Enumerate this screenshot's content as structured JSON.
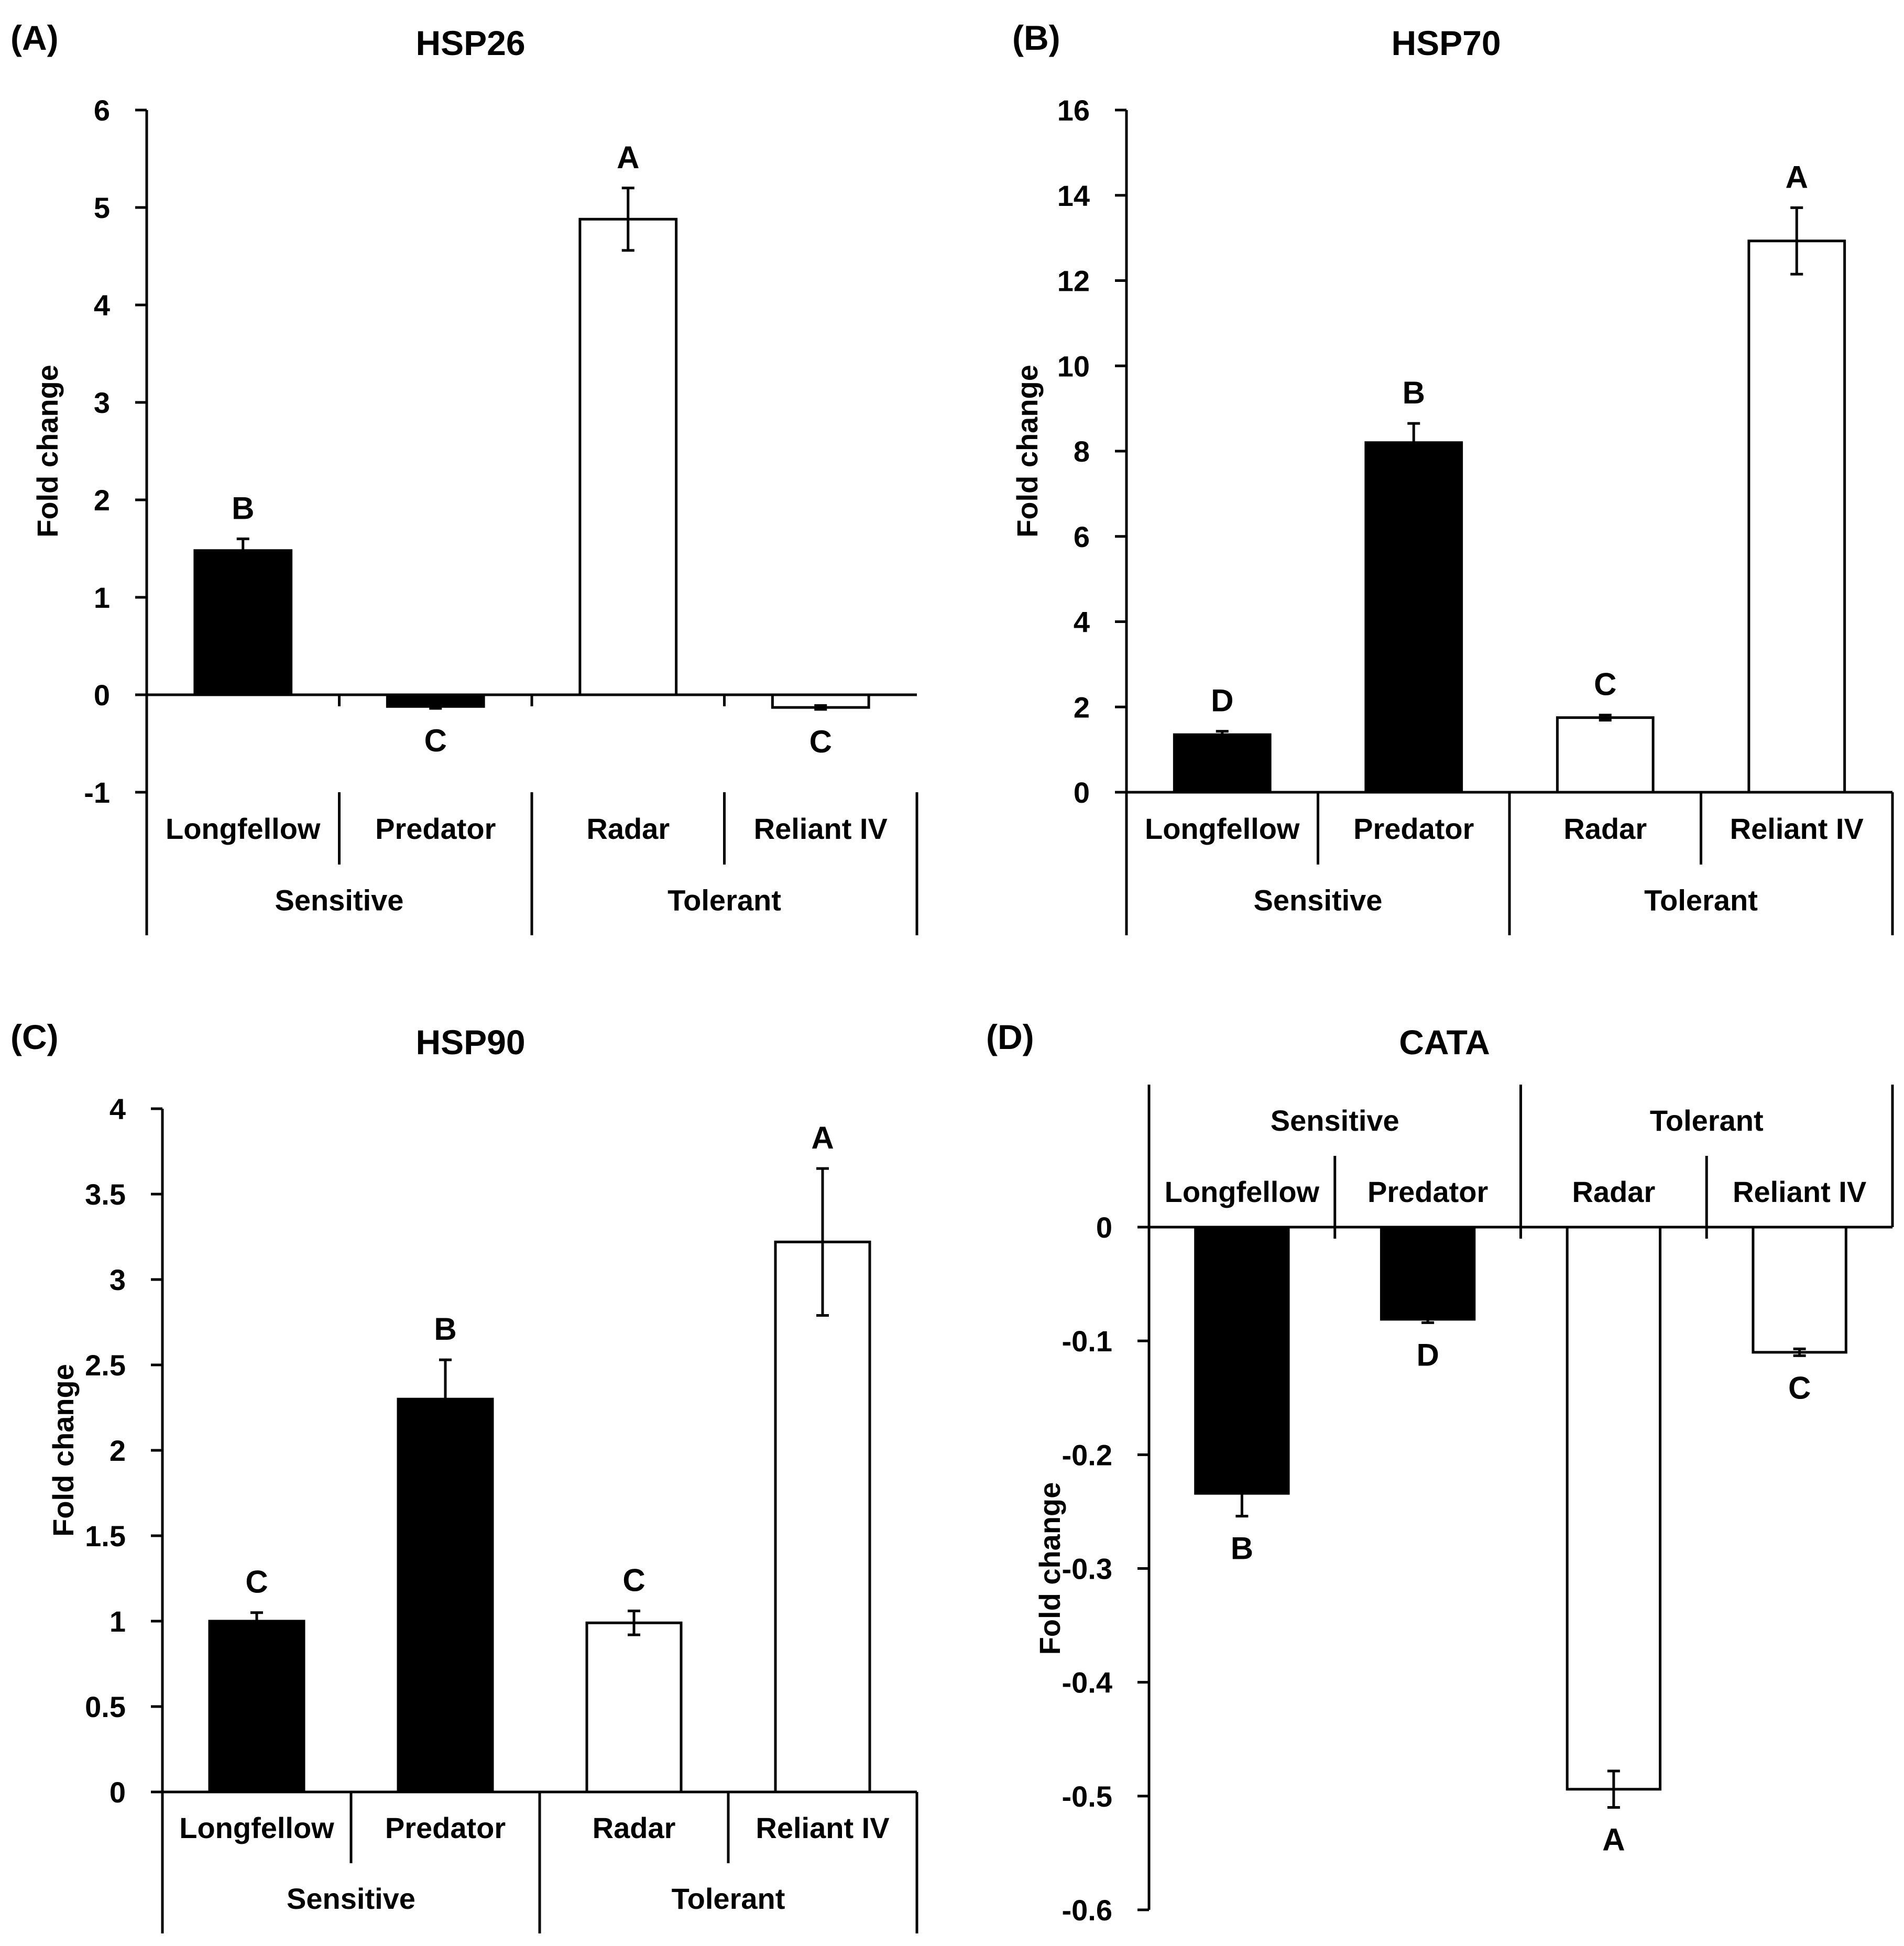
{
  "figure": {
    "panels": [
      {
        "letter": "(A)",
        "title": "HSP26"
      },
      {
        "letter": "(B)",
        "title": "HSP70"
      },
      {
        "letter": "(C)",
        "title": "HSP90"
      },
      {
        "letter": "(D)",
        "title": "CATA"
      }
    ]
  },
  "colors": {
    "sensitive_fill": "#000000",
    "tolerant_fill": "#ffffff",
    "axis": "#000000"
  },
  "chart_data": [
    {
      "type": "bar",
      "panel": "(A)",
      "title": "HSP26",
      "xlabel": "",
      "ylabel": "Fold change",
      "ylim": [
        -1,
        6
      ],
      "yticks": [
        -1,
        0,
        1,
        2,
        3,
        4,
        5,
        6
      ],
      "ytick_labels": [
        "-1",
        "0",
        "1",
        "2",
        "3",
        "4",
        "5",
        "6"
      ],
      "categories": [
        "Longfellow",
        "Predator",
        "Radar",
        "Reliant IV"
      ],
      "groups": [
        {
          "name": "Sensitive",
          "span": 2
        },
        {
          "name": "Tolerant",
          "span": 2
        }
      ],
      "values": [
        1.48,
        -0.12,
        4.88,
        -0.13
      ],
      "errors": [
        0.12,
        0.02,
        0.32,
        0.02
      ],
      "significance": [
        "B",
        "C",
        "A",
        "C"
      ],
      "bar_groups": [
        "Sensitive",
        "Sensitive",
        "Tolerant",
        "Tolerant"
      ]
    },
    {
      "type": "bar",
      "panel": "(B)",
      "title": "HSP70",
      "xlabel": "",
      "ylabel": "Fold change",
      "ylim": [
        0,
        16
      ],
      "yticks": [
        0,
        2,
        4,
        6,
        8,
        10,
        12,
        14,
        16
      ],
      "ytick_labels": [
        "0",
        "2",
        "4",
        "6",
        "8",
        "10",
        "12",
        "14",
        "16"
      ],
      "categories": [
        "Longfellow",
        "Predator",
        "Radar",
        "Reliant IV"
      ],
      "groups": [
        {
          "name": "Sensitive",
          "span": 2
        },
        {
          "name": "Tolerant",
          "span": 2
        }
      ],
      "values": [
        1.35,
        8.2,
        1.75,
        12.93
      ],
      "errors": [
        0.08,
        0.45,
        0.06,
        0.78
      ],
      "significance": [
        "D",
        "B",
        "C",
        "A"
      ],
      "bar_groups": [
        "Sensitive",
        "Sensitive",
        "Tolerant",
        "Tolerant"
      ]
    },
    {
      "type": "bar",
      "panel": "(C)",
      "title": "HSP90",
      "xlabel": "",
      "ylabel": "Fold change",
      "ylim": [
        0,
        4
      ],
      "yticks": [
        0,
        0.5,
        1,
        1.5,
        2,
        2.5,
        3,
        3.5,
        4
      ],
      "ytick_labels": [
        "0",
        "0.5",
        "1",
        "1.5",
        "2",
        "2.5",
        "3",
        "3.5",
        "4"
      ],
      "categories": [
        "Longfellow",
        "Predator",
        "Radar",
        "Reliant IV"
      ],
      "groups": [
        {
          "name": "Sensitive",
          "span": 2
        },
        {
          "name": "Tolerant",
          "span": 2
        }
      ],
      "values": [
        1.0,
        2.3,
        0.99,
        3.22
      ],
      "errors": [
        0.05,
        0.23,
        0.07,
        0.43
      ],
      "significance": [
        "C",
        "B",
        "C",
        "A"
      ],
      "bar_groups": [
        "Sensitive",
        "Sensitive",
        "Tolerant",
        "Tolerant"
      ]
    },
    {
      "type": "bar",
      "panel": "(D)",
      "title": "CATA",
      "xlabel": "",
      "ylabel": "Fold change",
      "ylim": [
        -0.6,
        0
      ],
      "yticks": [
        0,
        -0.1,
        -0.2,
        -0.3,
        -0.4,
        -0.5,
        -0.6
      ],
      "ytick_labels": [
        "0",
        "-0.1",
        "-0.2",
        "-0.3",
        "-0.4",
        "-0.5",
        "-0.6"
      ],
      "categories": [
        "Longfellow",
        "Predator",
        "Radar",
        "Reliant IV"
      ],
      "groups": [
        {
          "name": "Sensitive",
          "span": 2
        },
        {
          "name": "Tolerant",
          "span": 2
        }
      ],
      "values": [
        -0.234,
        -0.081,
        -0.494,
        -0.11
      ],
      "errors": [
        0.02,
        0.003,
        0.016,
        0.003
      ],
      "significance": [
        "B",
        "D",
        "A",
        "C"
      ],
      "bar_groups": [
        "Sensitive",
        "Sensitive",
        "Tolerant",
        "Tolerant"
      ]
    }
  ]
}
